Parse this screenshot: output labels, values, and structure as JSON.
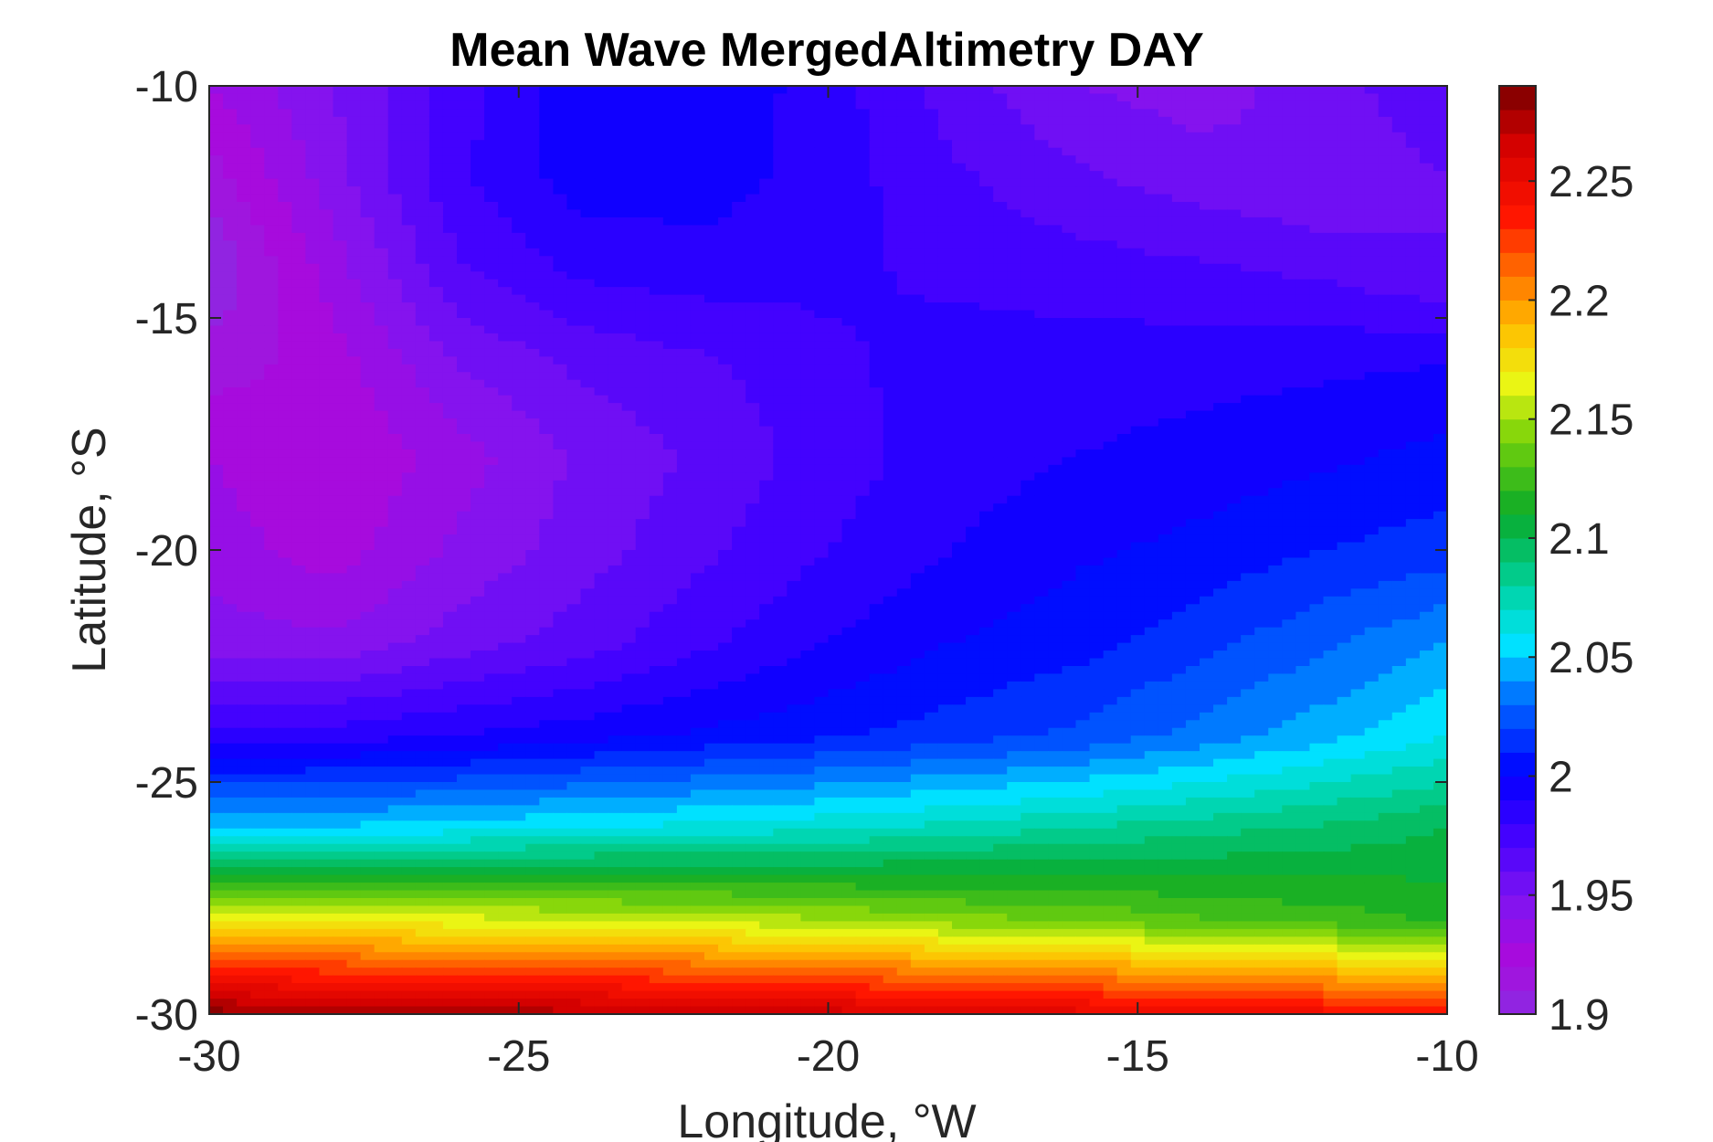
{
  "chart_data": {
    "type": "contour",
    "title": "Mean Wave MergedAltimetry DAY",
    "xlabel": "Longitude, °W",
    "ylabel": "Latitude, °S",
    "xlim": [
      -30,
      -10
    ],
    "ylim": [
      -30,
      -10
    ],
    "xticks": [
      -30,
      -25,
      -20,
      -15,
      -10
    ],
    "yticks": [
      -10,
      -15,
      -20,
      -25,
      -30
    ],
    "x_tick_labels": [
      "-30",
      "-25",
      "-20",
      "-15",
      "-10"
    ],
    "y_tick_labels": [
      "-10",
      "-15",
      "-20",
      "-25",
      "-30"
    ],
    "colorbar": {
      "range": [
        1.9,
        2.29
      ],
      "ticks": [
        1.9,
        1.95,
        2,
        2.05,
        2.1,
        2.15,
        2.2,
        2.25
      ],
      "tick_labels": [
        "1.9",
        "1.95",
        "2",
        "2.05",
        "2.1",
        "2.15",
        "2.2",
        "2.25"
      ],
      "colormap": "hsv-like (violet → blue → cyan → green → yellow → red → dark red)",
      "level_step": 0.01
    },
    "grid": false,
    "lon": [
      -30,
      -28,
      -26,
      -24,
      -22,
      -20,
      -18,
      -16,
      -14,
      -12,
      -10
    ],
    "lat": [
      -10,
      -12,
      -14,
      -16,
      -18,
      -20,
      -22,
      -24,
      -26,
      -28,
      -30
    ],
    "z": [
      [
        1.93,
        1.95,
        1.975,
        1.998,
        1.998,
        1.985,
        1.965,
        1.95,
        1.945,
        1.955,
        1.97
      ],
      [
        1.915,
        1.945,
        1.978,
        1.995,
        1.995,
        1.985,
        1.972,
        1.962,
        1.955,
        1.95,
        1.96
      ],
      [
        1.9,
        1.935,
        1.968,
        1.982,
        1.985,
        1.982,
        1.978,
        1.975,
        1.972,
        1.968,
        1.96
      ],
      [
        1.915,
        1.925,
        1.95,
        1.962,
        1.968,
        1.978,
        1.984,
        1.985,
        1.986,
        1.988,
        1.99
      ],
      [
        1.93,
        1.92,
        1.935,
        1.952,
        1.962,
        1.975,
        1.985,
        1.99,
        1.994,
        1.998,
        2.003
      ],
      [
        1.935,
        1.925,
        1.942,
        1.955,
        1.968,
        1.98,
        1.99,
        1.998,
        2.003,
        2.01,
        2.015
      ],
      [
        1.945,
        1.942,
        1.955,
        1.965,
        1.978,
        1.99,
        2.0,
        2.006,
        2.016,
        2.028,
        2.04
      ],
      [
        1.985,
        1.985,
        1.99,
        1.996,
        2.002,
        2.008,
        2.015,
        2.022,
        2.034,
        2.046,
        2.06
      ],
      [
        2.05,
        2.052,
        2.056,
        2.06,
        2.064,
        2.068,
        2.074,
        2.08,
        2.086,
        2.092,
        2.1
      ],
      [
        2.17,
        2.168,
        2.165,
        2.162,
        2.158,
        2.152,
        2.145,
        2.14,
        2.132,
        2.126,
        2.118
      ],
      [
        2.285,
        2.282,
        2.278,
        2.274,
        2.27,
        2.265,
        2.26,
        2.255,
        2.25,
        2.245,
        2.24
      ]
    ],
    "notes": "z values (mean wave height) estimated by reading contour colors against the colorbar"
  }
}
